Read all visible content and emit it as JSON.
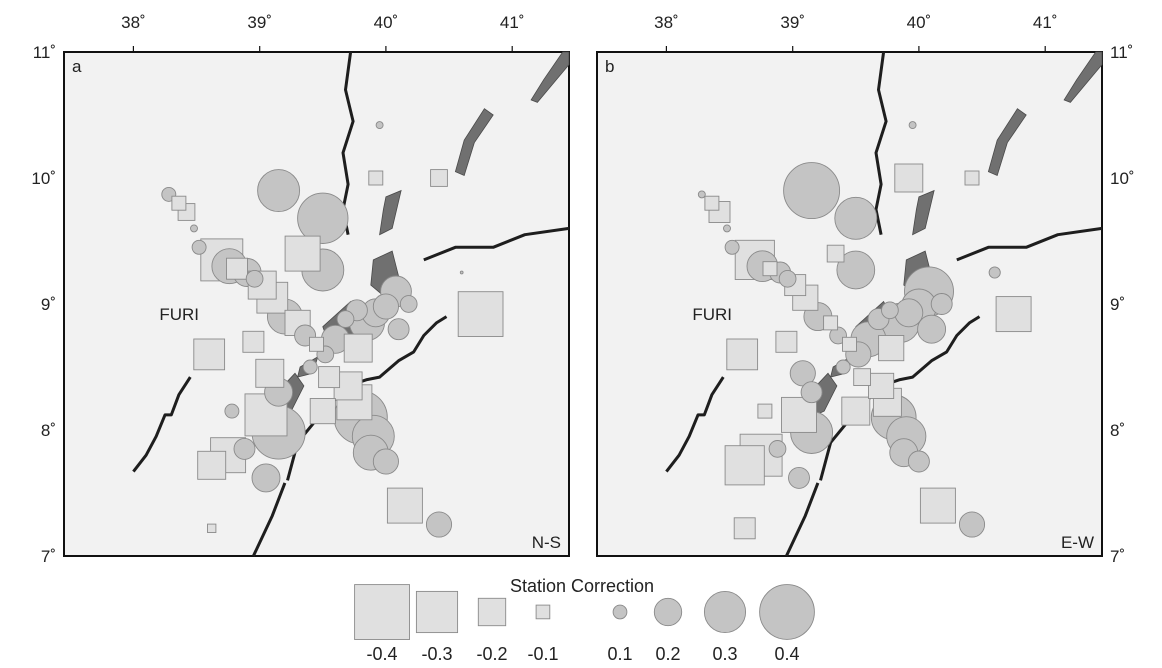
{
  "colors": {
    "panel_fill": "#f2f2f2",
    "frame": "#111111",
    "marker_fill": "#c4c4c4",
    "square_fill": "#e0e0e0",
    "marker_stroke": "#8a8a8a",
    "dark_region": "#707070",
    "rift_line": "#1e1e1e"
  },
  "panels": [
    {
      "letter": "a",
      "component": "N-S",
      "station_label": "FURI"
    },
    {
      "letter": "b",
      "component": "E-W",
      "station_label": "FURI"
    }
  ],
  "longitude_labels": [
    "38˚",
    "39˚",
    "40˚",
    "41˚"
  ],
  "latitude_labels": [
    "7˚",
    "8˚",
    "9˚",
    "10˚",
    "11˚"
  ],
  "map_extent": {
    "lon": [
      37.45,
      41.45
    ],
    "lat": [
      7.0,
      11.0
    ]
  },
  "station_label_position": {
    "lon": 38.63,
    "lat": 8.92
  },
  "legend": {
    "title": "Station Correction",
    "items": [
      {
        "label": "-0.4",
        "value": -0.4,
        "shape": "square"
      },
      {
        "label": "-0.3",
        "value": -0.3,
        "shape": "square"
      },
      {
        "label": "-0.2",
        "value": -0.2,
        "shape": "square"
      },
      {
        "label": "-0.1",
        "value": -0.1,
        "shape": "square"
      },
      {
        "label": "0.1",
        "value": 0.1,
        "shape": "circle"
      },
      {
        "label": "0.2",
        "value": 0.2,
        "shape": "circle"
      },
      {
        "label": "0.3",
        "value": 0.3,
        "shape": "circle"
      },
      {
        "label": "0.4",
        "value": 0.4,
        "shape": "circle"
      }
    ]
  },
  "stations": [
    {
      "lon": 39.15,
      "lat": 9.9,
      "ns": 0.3,
      "ew": 0.4
    },
    {
      "lon": 39.5,
      "lat": 9.68,
      "ns": 0.36,
      "ew": 0.3
    },
    {
      "lon": 39.5,
      "lat": 9.27,
      "ns": 0.3,
      "ew": 0.27
    },
    {
      "lon": 39.34,
      "lat": 9.4,
      "ns": -0.25,
      "ew": -0.12
    },
    {
      "lon": 38.28,
      "lat": 9.87,
      "ns": 0.1,
      "ew": 0.05
    },
    {
      "lon": 38.36,
      "lat": 9.8,
      "ns": -0.1,
      "ew": -0.1
    },
    {
      "lon": 38.42,
      "lat": 9.73,
      "ns": -0.12,
      "ew": -0.15
    },
    {
      "lon": 38.48,
      "lat": 9.6,
      "ns": 0.05,
      "ew": 0.05
    },
    {
      "lon": 38.52,
      "lat": 9.45,
      "ns": 0.1,
      "ew": 0.1
    },
    {
      "lon": 38.7,
      "lat": 9.35,
      "ns": -0.3,
      "ew": -0.28
    },
    {
      "lon": 38.76,
      "lat": 9.3,
      "ns": 0.25,
      "ew": 0.22
    },
    {
      "lon": 38.82,
      "lat": 9.28,
      "ns": -0.15,
      "ew": -0.1
    },
    {
      "lon": 38.9,
      "lat": 9.25,
      "ns": 0.2,
      "ew": 0.15
    },
    {
      "lon": 38.96,
      "lat": 9.2,
      "ns": 0.12,
      "ew": 0.12
    },
    {
      "lon": 39.02,
      "lat": 9.15,
      "ns": -0.2,
      "ew": -0.15
    },
    {
      "lon": 39.1,
      "lat": 9.05,
      "ns": -0.22,
      "ew": -0.18
    },
    {
      "lon": 39.2,
      "lat": 8.9,
      "ns": 0.25,
      "ew": 0.2
    },
    {
      "lon": 39.3,
      "lat": 8.85,
      "ns": -0.18,
      "ew": -0.1
    },
    {
      "lon": 39.36,
      "lat": 8.75,
      "ns": 0.15,
      "ew": 0.12
    },
    {
      "lon": 39.45,
      "lat": 8.68,
      "ns": -0.1,
      "ew": -0.1
    },
    {
      "lon": 39.52,
      "lat": 8.6,
      "ns": 0.12,
      "ew": 0.18
    },
    {
      "lon": 39.6,
      "lat": 8.72,
      "ns": 0.2,
      "ew": 0.25
    },
    {
      "lon": 39.68,
      "lat": 8.88,
      "ns": 0.12,
      "ew": 0.15
    },
    {
      "lon": 39.77,
      "lat": 8.95,
      "ns": 0.15,
      "ew": 0.12
    },
    {
      "lon": 39.85,
      "lat": 8.85,
      "ns": 0.25,
      "ew": 0.28
    },
    {
      "lon": 39.92,
      "lat": 8.93,
      "ns": 0.2,
      "ew": 0.2
    },
    {
      "lon": 40.0,
      "lat": 8.98,
      "ns": 0.18,
      "ew": 0.25
    },
    {
      "lon": 40.08,
      "lat": 9.1,
      "ns": 0.22,
      "ew": 0.35
    },
    {
      "lon": 40.18,
      "lat": 9.0,
      "ns": 0.12,
      "ew": 0.15
    },
    {
      "lon": 40.1,
      "lat": 8.8,
      "ns": 0.15,
      "ew": 0.2
    },
    {
      "lon": 39.4,
      "lat": 8.5,
      "ns": 0.1,
      "ew": 0.1
    },
    {
      "lon": 39.55,
      "lat": 8.42,
      "ns": -0.15,
      "ew": -0.12
    },
    {
      "lon": 39.7,
      "lat": 8.35,
      "ns": -0.2,
      "ew": -0.18
    },
    {
      "lon": 39.75,
      "lat": 8.22,
      "ns": -0.25,
      "ew": -0.2
    },
    {
      "lon": 39.8,
      "lat": 8.1,
      "ns": 0.38,
      "ew": 0.32
    },
    {
      "lon": 39.9,
      "lat": 7.95,
      "ns": 0.3,
      "ew": 0.28
    },
    {
      "lon": 39.88,
      "lat": 7.82,
      "ns": 0.25,
      "ew": 0.2
    },
    {
      "lon": 40.0,
      "lat": 7.75,
      "ns": 0.18,
      "ew": 0.15
    },
    {
      "lon": 39.15,
      "lat": 8.3,
      "ns": 0.2,
      "ew": 0.15
    },
    {
      "lon": 39.05,
      "lat": 8.12,
      "ns": -0.3,
      "ew": -0.25
    },
    {
      "lon": 39.15,
      "lat": 7.98,
      "ns": 0.38,
      "ew": 0.3
    },
    {
      "lon": 38.88,
      "lat": 7.85,
      "ns": 0.15,
      "ew": 0.12
    },
    {
      "lon": 38.75,
      "lat": 7.8,
      "ns": -0.25,
      "ew": -0.3
    },
    {
      "lon": 38.62,
      "lat": 7.72,
      "ns": -0.2,
      "ew": -0.28
    },
    {
      "lon": 38.6,
      "lat": 8.6,
      "ns": -0.22,
      "ew": -0.22
    },
    {
      "lon": 38.78,
      "lat": 8.15,
      "ns": 0.1,
      "ew": -0.1
    },
    {
      "lon": 38.95,
      "lat": 8.7,
      "ns": -0.15,
      "ew": -0.15
    },
    {
      "lon": 39.08,
      "lat": 8.45,
      "ns": -0.2,
      "ew": 0.18
    },
    {
      "lon": 39.05,
      "lat": 7.62,
      "ns": 0.2,
      "ew": 0.15
    },
    {
      "lon": 40.15,
      "lat": 7.4,
      "ns": -0.25,
      "ew": -0.25
    },
    {
      "lon": 40.42,
      "lat": 7.25,
      "ns": 0.18,
      "ew": 0.18
    },
    {
      "lon": 40.75,
      "lat": 8.92,
      "ns": -0.32,
      "ew": -0.25
    },
    {
      "lon": 39.92,
      "lat": 10.0,
      "ns": -0.1,
      "ew": -0.2
    },
    {
      "lon": 40.42,
      "lat": 10.0,
      "ns": -0.12,
      "ew": -0.1
    },
    {
      "lon": 39.95,
      "lat": 10.42,
      "ns": 0.05,
      "ew": 0.05
    },
    {
      "lon": 40.6,
      "lat": 9.25,
      "ns": 0.02,
      "ew": 0.08
    },
    {
      "lon": 38.62,
      "lat": 7.22,
      "ns": -0.06,
      "ew": -0.15
    },
    {
      "lon": 39.5,
      "lat": 8.15,
      "ns": -0.18,
      "ew": -0.2
    },
    {
      "lon": 39.78,
      "lat": 8.65,
      "ns": -0.2,
      "ew": -0.18
    }
  ],
  "rift_lines": [
    [
      [
        39.72,
        11.0
      ],
      [
        39.68,
        10.7
      ],
      [
        39.74,
        10.45
      ],
      [
        39.66,
        10.2
      ],
      [
        39.7,
        9.95
      ],
      [
        39.66,
        9.75
      ],
      [
        39.7,
        9.55
      ]
    ],
    [
      [
        40.3,
        9.35
      ],
      [
        40.55,
        9.45
      ],
      [
        40.85,
        9.45
      ],
      [
        41.1,
        9.55
      ],
      [
        41.45,
        9.6
      ]
    ],
    [
      [
        39.22,
        7.6
      ],
      [
        39.3,
        7.9
      ],
      [
        39.48,
        8.12
      ],
      [
        39.7,
        8.35
      ],
      [
        39.85,
        8.4
      ],
      [
        39.95,
        8.42
      ],
      [
        40.1,
        8.55
      ],
      [
        40.22,
        8.62
      ],
      [
        40.3,
        8.75
      ],
      [
        40.4,
        8.85
      ],
      [
        40.48,
        8.9
      ]
    ],
    [
      [
        39.2,
        7.58
      ],
      [
        39.1,
        7.32
      ],
      [
        38.95,
        7.0
      ]
    ],
    [
      [
        38.0,
        7.67
      ],
      [
        38.1,
        7.8
      ],
      [
        38.18,
        7.95
      ],
      [
        38.25,
        8.12
      ],
      [
        38.3,
        8.12
      ],
      [
        38.36,
        8.28
      ],
      [
        38.45,
        8.42
      ]
    ],
    [
      [
        38.55,
        8.55
      ],
      [
        38.64,
        8.7
      ]
    ]
  ],
  "dark_regions": [
    [
      [
        41.2,
        10.6
      ],
      [
        41.45,
        10.9
      ],
      [
        41.45,
        11.0
      ],
      [
        41.4,
        11.0
      ],
      [
        41.25,
        10.78
      ],
      [
        41.15,
        10.62
      ]
    ],
    [
      [
        40.7,
        10.28
      ],
      [
        40.85,
        10.5
      ],
      [
        40.78,
        10.55
      ],
      [
        40.62,
        10.3
      ],
      [
        40.55,
        10.05
      ],
      [
        40.62,
        10.02
      ]
    ],
    [
      [
        40.0,
        9.85
      ],
      [
        40.12,
        9.9
      ],
      [
        40.05,
        9.6
      ],
      [
        39.95,
        9.55
      ],
      [
        39.98,
        9.75
      ]
    ],
    [
      [
        39.9,
        9.35
      ],
      [
        40.05,
        9.42
      ],
      [
        40.1,
        9.22
      ],
      [
        40.0,
        9.05
      ],
      [
        39.88,
        9.15
      ]
    ],
    [
      [
        39.5,
        8.82
      ],
      [
        39.72,
        9.02
      ],
      [
        39.82,
        8.82
      ],
      [
        39.68,
        8.65
      ],
      [
        39.55,
        8.68
      ]
    ],
    [
      [
        39.1,
        8.08
      ],
      [
        39.25,
        8.15
      ],
      [
        39.35,
        8.35
      ],
      [
        39.28,
        8.45
      ],
      [
        39.12,
        8.28
      ]
    ],
    [
      [
        39.32,
        8.5
      ],
      [
        39.46,
        8.58
      ],
      [
        39.42,
        8.45
      ],
      [
        39.3,
        8.42
      ]
    ]
  ]
}
